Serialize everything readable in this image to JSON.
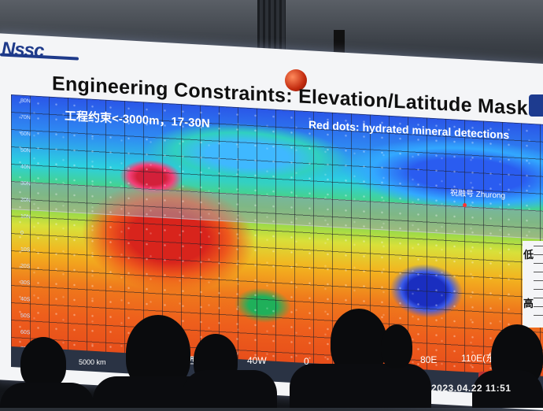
{
  "slide": {
    "logo_text": "Nssc",
    "title": "Engineering Constraints: Elevation/Latitude Mask",
    "subtitle": "工程约束<-3000m，17-30N",
    "red_dots_note": "Red dots: hydrated mineral detections",
    "landing_site_label": "祝融号 Zhurong",
    "legend_low": "低",
    "legend_high": "高",
    "scale_bar": "5000 km",
    "latitude_labels": [
      "80N",
      "70N",
      "60N",
      "50N",
      "40N",
      "30N",
      "20N",
      "10N",
      "0",
      "10S",
      "20S",
      "30S",
      "40S",
      "50S",
      "60S",
      "70S"
    ],
    "longitude_labels": [
      "西",
      "40W",
      "0",
      "80E",
      "110E(东"
    ]
  },
  "photo_overlay": {
    "timestamp": "2023.04.22  11:51"
  },
  "colors": {
    "screen_background": "#f4f5f7",
    "title_text": "#101010",
    "logo_blue": "#1e3a8a",
    "map_low_blue": "#1a2ec0",
    "map_high_red": "#d8241c"
  }
}
